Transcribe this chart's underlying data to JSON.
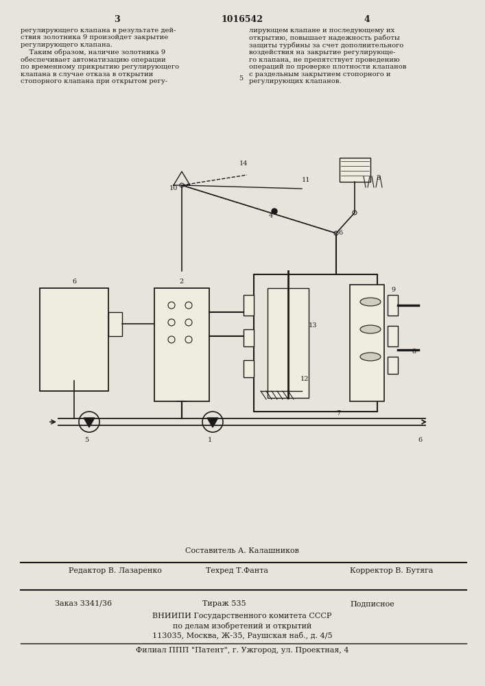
{
  "page_width": 7.07,
  "page_height": 10.0,
  "bg_color": "#e8e4dc",
  "text_color": "#1a1a1a",
  "line_color": "#1a1a1a",
  "header_col1": "3",
  "header_center": "1016542",
  "header_col2": "4",
  "left_text": "регулирующего клапана в результате дей-\nствия золотника 9 произойдет закрытие\nрегулирующего клапана.\n    Таким образом, наличие золотника 9\nобеспечивает автоматизацию операции\nпо временному прикрытию регулирующего\nклапана в случае отказа в открытии\nстопорного клапана при открытом регу-",
  "right_text": "лирующем клапане и последующему их\nоткрытию, повышает надежность работы\nзащиты турбины за счет дополнительного\nвоздействия на закрытие регулирующе-\nго клапана, не препятствует проведению\nопераций по проверке плотности клапанов\nс раздельным закрытием стопорного и\nрегулирующих клапанов.",
  "footnote_sestavitel": "Составитель А. Калашников",
  "footnote_redaktor": "Редактор В. Лазаренко",
  "footnote_tehred": "Техред Т.Фанта",
  "footnote_korrektor": "Корректор В. Бутяга",
  "footnote_zakaz": "Заказ 3341/36",
  "footnote_tirazh": "Тираж 535",
  "footnote_podpisnoe": "Подписное",
  "footnote_vniipii": "ВНИИПИ Государственного комитета СССР",
  "footnote_po_delam": "по делам изобретений и открытий",
  "footnote_address": "113035, Москва, Ж-35, Раушская наб., д. 4/5",
  "footnote_filial": "Филиал ППП \"Патент\", г. Ужгород, ул. Проектная, 4",
  "num5_label": "5",
  "num1_label": "1",
  "num6_label": "6",
  "num8_label": "6",
  "num2_label": "2",
  "num3_label": "3",
  "num4_label": "4",
  "num10_label": "10",
  "num11_label": "11",
  "num14_label": "14",
  "num12_label": "12",
  "num13_label": "13",
  "num7_label": "7",
  "num9_label": "9"
}
